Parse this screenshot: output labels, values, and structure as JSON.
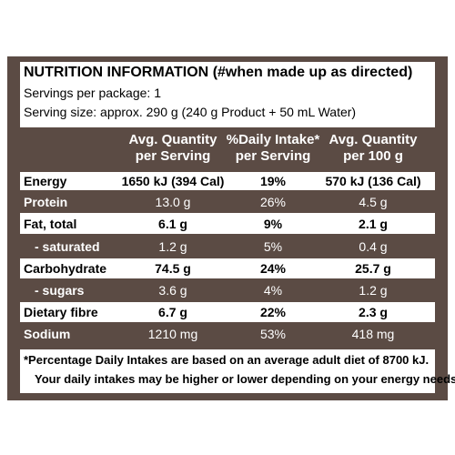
{
  "header": {
    "title": "NUTRITION INFORMATION",
    "title_note": "(#when made up as directed)",
    "servings": "Servings per package: 1",
    "serving_size": "Serving size: approx. 290 g (240 g Product + 50 mL Water)"
  },
  "table": {
    "columns": [
      [
        "Avg. Quantity",
        "per Serving"
      ],
      [
        "%Daily Intake*",
        "per Serving"
      ],
      [
        "Avg. Quantity",
        "per 100 g"
      ]
    ],
    "rows": [
      [
        "Energy",
        "1650 kJ (394 Cal)",
        "19%",
        "570 kJ (136 Cal)"
      ],
      [
        "Protein",
        "13.0 g",
        "26%",
        "4.5 g"
      ],
      [
        "Fat, total",
        "6.1 g",
        "9%",
        "2.1 g"
      ],
      [
        "- saturated",
        "1.2 g",
        "5%",
        "0.4 g"
      ],
      [
        "Carbohydrate",
        "74.5 g",
        "24%",
        "25.7 g"
      ],
      [
        "- sugars",
        "3.6 g",
        "4%",
        "1.2 g"
      ],
      [
        "Dietary fibre",
        "6.7 g",
        "22%",
        "2.3 g"
      ],
      [
        "Sodium",
        "1210 mg",
        "53%",
        "418 mg"
      ]
    ]
  },
  "footnote": [
    "*Percentage Daily Intakes are based on an average adult diet of 8700 kJ.",
    "Your daily intakes may be higher or lower depending on your energy needs."
  ]
}
